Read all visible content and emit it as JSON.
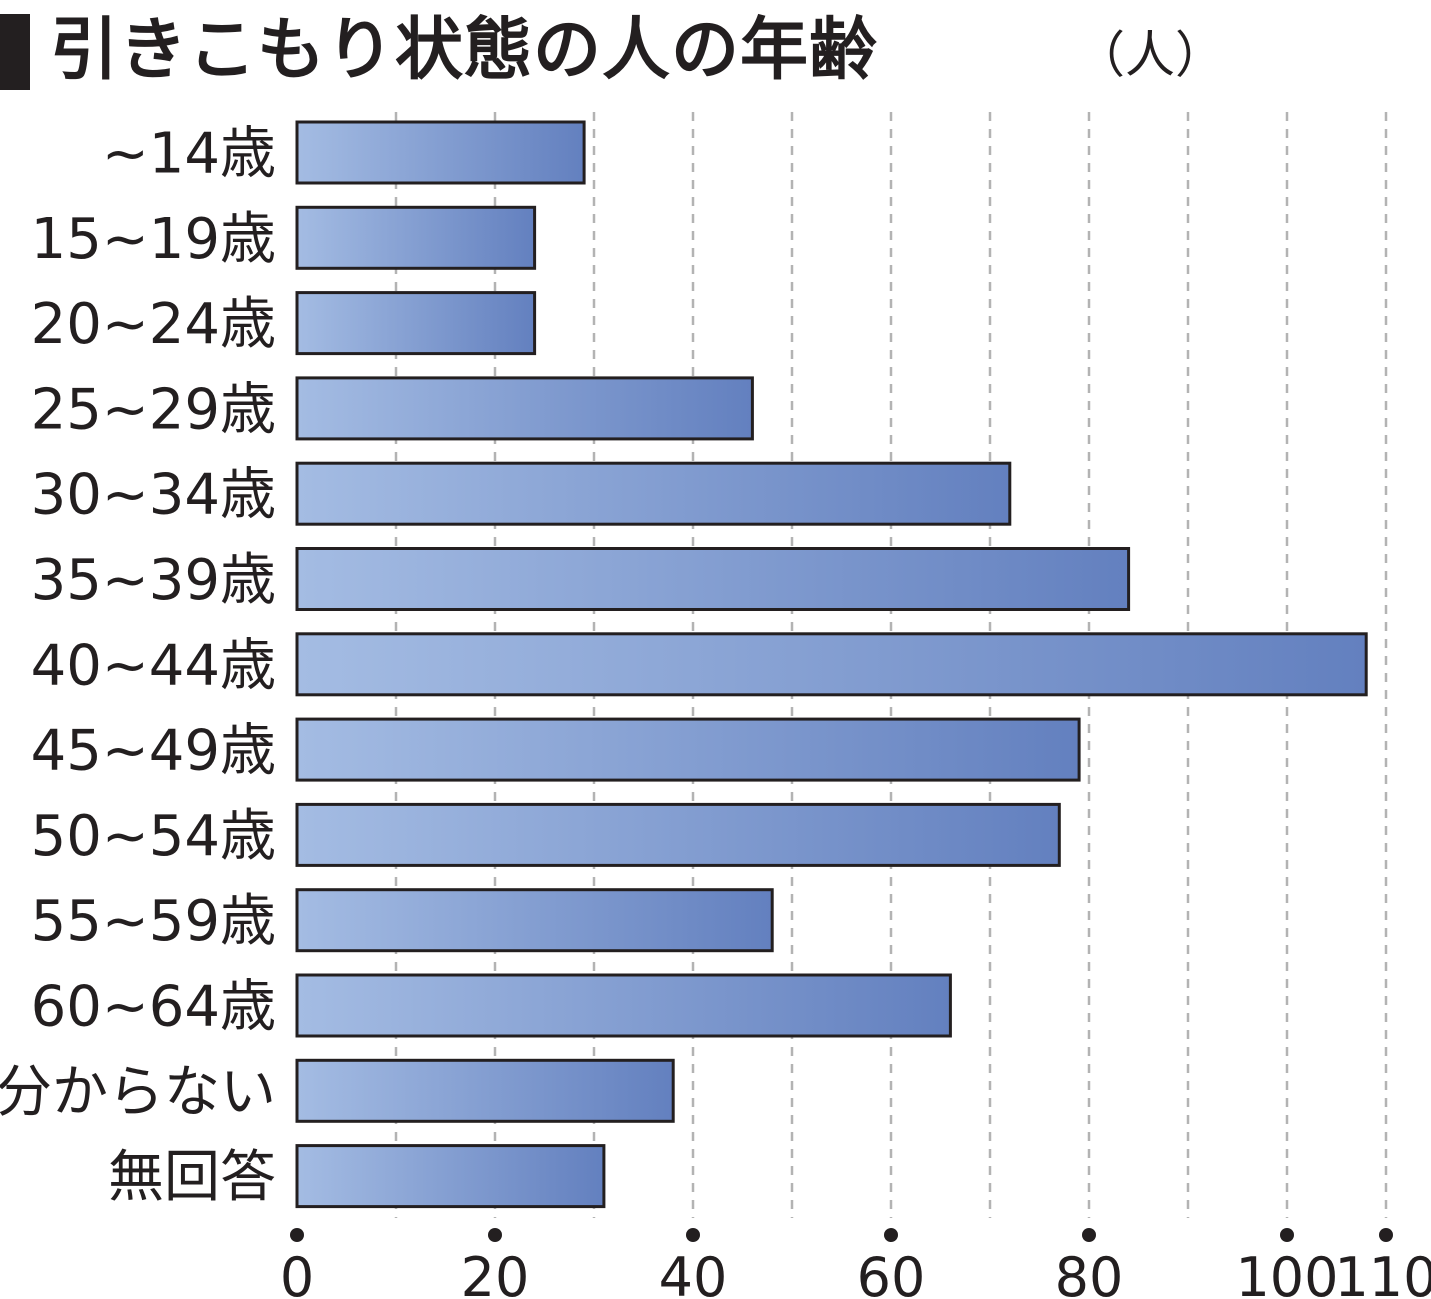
{
  "title": "引きこもり状態の人の年齢",
  "unit": "（人）",
  "chart_data": {
    "type": "bar",
    "orientation": "horizontal",
    "categories": [
      "~14歳",
      "15~19歳",
      "20~24歳",
      "25~29歳",
      "30~34歳",
      "35~39歳",
      "40~44歳",
      "45~49歳",
      "50~54歳",
      "55~59歳",
      "60~64歳",
      "分からない",
      "無回答"
    ],
    "values": [
      29,
      24,
      24,
      46,
      72,
      84,
      108,
      79,
      77,
      48,
      66,
      38,
      31
    ],
    "x_ticks": [
      "0",
      "20",
      "40",
      "60",
      "80",
      "100",
      "110"
    ],
    "x_tick_values": [
      0,
      20,
      40,
      60,
      80,
      100,
      110
    ],
    "xlim": [
      0,
      110
    ],
    "grid": "vertical dashed every 10",
    "colors": {
      "bar_light": "#a4bce3",
      "bar_dark": "#6380bf",
      "bar_border": "#231f20",
      "grid": "#b3b3b3",
      "text": "#231f20"
    }
  }
}
